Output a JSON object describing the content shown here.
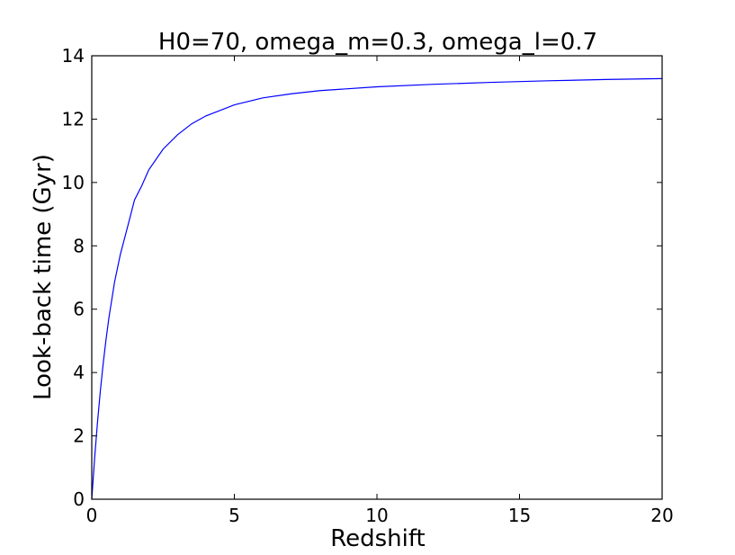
{
  "chart_data": {
    "type": "line",
    "title": "H0=70, omega_m=0.3, omega_l=0.7",
    "xlabel": "Redshift",
    "ylabel": "Look-back time (Gyr)",
    "xlim": [
      0,
      20
    ],
    "ylim": [
      0,
      14
    ],
    "xticks": [
      0,
      5,
      10,
      15,
      20
    ],
    "yticks": [
      0,
      2,
      4,
      6,
      8,
      10,
      12,
      14
    ],
    "xtick_labels": [
      "0",
      "5",
      "10",
      "15",
      "20"
    ],
    "ytick_labels": [
      "0",
      "2",
      "4",
      "6",
      "8",
      "10",
      "12",
      "14"
    ],
    "grid": false,
    "series": [
      {
        "color": "#0000ff",
        "x": [
          0,
          0.1,
          0.2,
          0.3,
          0.4,
          0.5,
          0.6,
          0.8,
          1.0,
          1.25,
          1.5,
          1.75,
          2.0,
          2.5,
          3.0,
          3.5,
          4.0,
          5.0,
          6.0,
          7.0,
          8.0,
          10.0,
          12.0,
          14.0,
          16.0,
          18.0,
          20.0
        ],
        "y": [
          0,
          1.29,
          2.42,
          3.41,
          4.28,
          5.04,
          5.72,
          6.86,
          7.72,
          8.58,
          9.45,
          9.89,
          10.4,
          11.05,
          11.5,
          11.85,
          12.1,
          12.45,
          12.67,
          12.8,
          12.9,
          13.02,
          13.1,
          13.16,
          13.21,
          13.25,
          13.28
        ]
      }
    ]
  }
}
